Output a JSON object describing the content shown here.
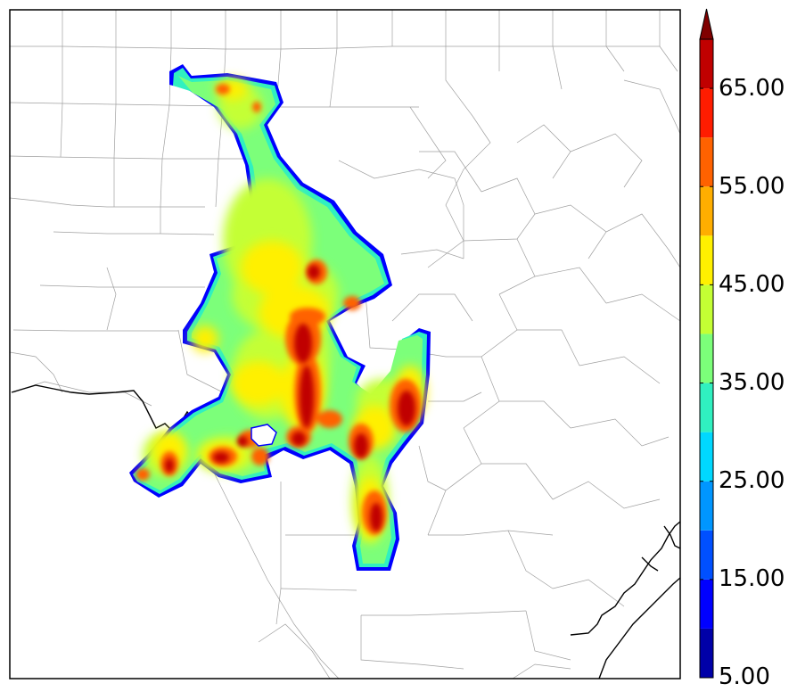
{
  "colorbar": {
    "tick_labels": [
      "5.00",
      "15.00",
      "25.00",
      "35.00",
      "45.00",
      "55.00",
      "65.00"
    ],
    "tick_values": [
      5,
      15,
      25,
      35,
      45,
      55,
      65
    ],
    "range": [
      5,
      70
    ],
    "levels": [
      5,
      10,
      15,
      20,
      25,
      30,
      35,
      40,
      45,
      50,
      55,
      60,
      65,
      70
    ],
    "colors": [
      "#0000a8",
      "#0000ff",
      "#0050ff",
      "#0096ff",
      "#00d8ff",
      "#30f0c0",
      "#7cff7a",
      "#c4ff34",
      "#fff000",
      "#ffae00",
      "#ff6200",
      "#ff1c00",
      "#c00000"
    ],
    "extend_color": "#800000",
    "extend": "max"
  },
  "map": {
    "background": "#ffffff",
    "county_line_color": "#9a9a9a",
    "coast_line_color": "#000000"
  }
}
